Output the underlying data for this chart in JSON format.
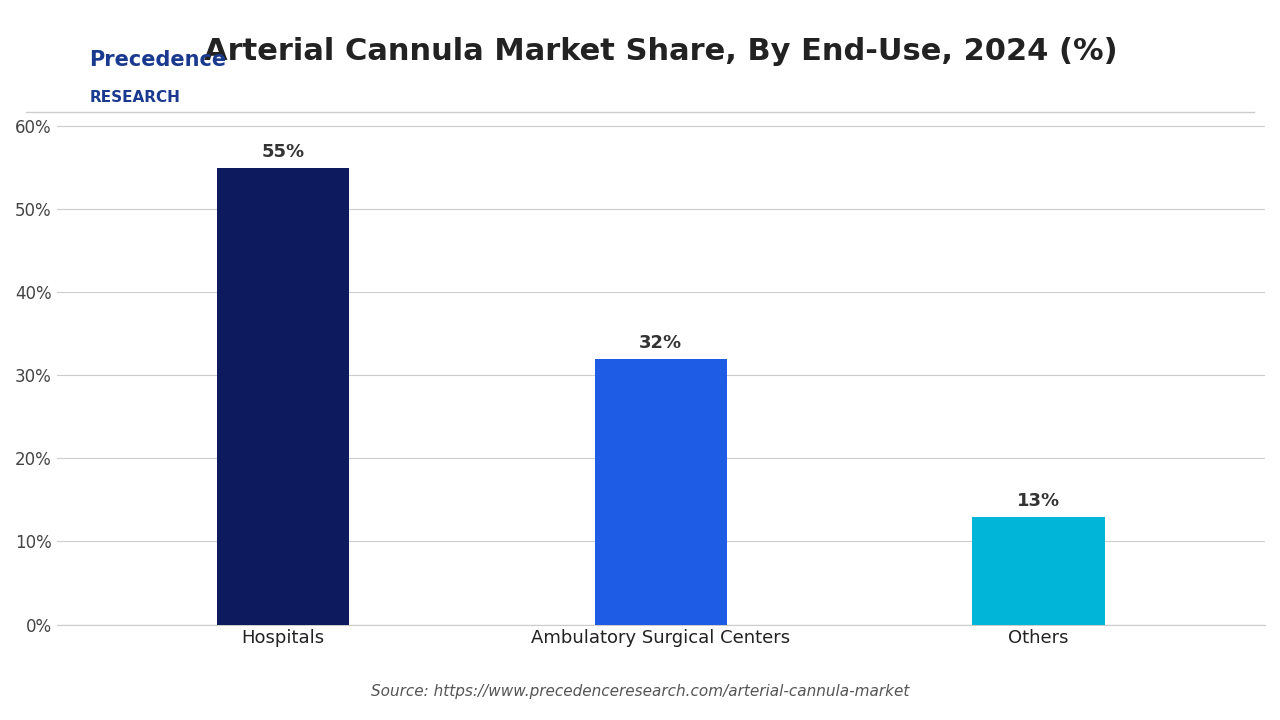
{
  "title": "Arterial Cannula Market Share, By End-Use, 2024 (%)",
  "categories": [
    "Hospitals",
    "Ambulatory Surgical Centers",
    "Others"
  ],
  "values": [
    55,
    32,
    13
  ],
  "bar_colors": [
    "#0d1b5e",
    "#1f5ce6",
    "#00b5d8"
  ],
  "labels": [
    "55%",
    "32%",
    "13%"
  ],
  "ylim": [
    0,
    65
  ],
  "yticks": [
    0,
    10,
    20,
    30,
    40,
    50,
    60
  ],
  "ytick_labels": [
    "0%",
    "10%",
    "20%",
    "30%",
    "40%",
    "50%",
    "60%"
  ],
  "source_text": "Source: https://www.precedenceresearch.com/arterial-cannula-market",
  "background_color": "#ffffff",
  "title_fontsize": 22,
  "label_fontsize": 13,
  "tick_fontsize": 12,
  "source_fontsize": 11,
  "bar_width": 0.35,
  "logo_precedence": "Precedence",
  "logo_research": "RESEARCH"
}
